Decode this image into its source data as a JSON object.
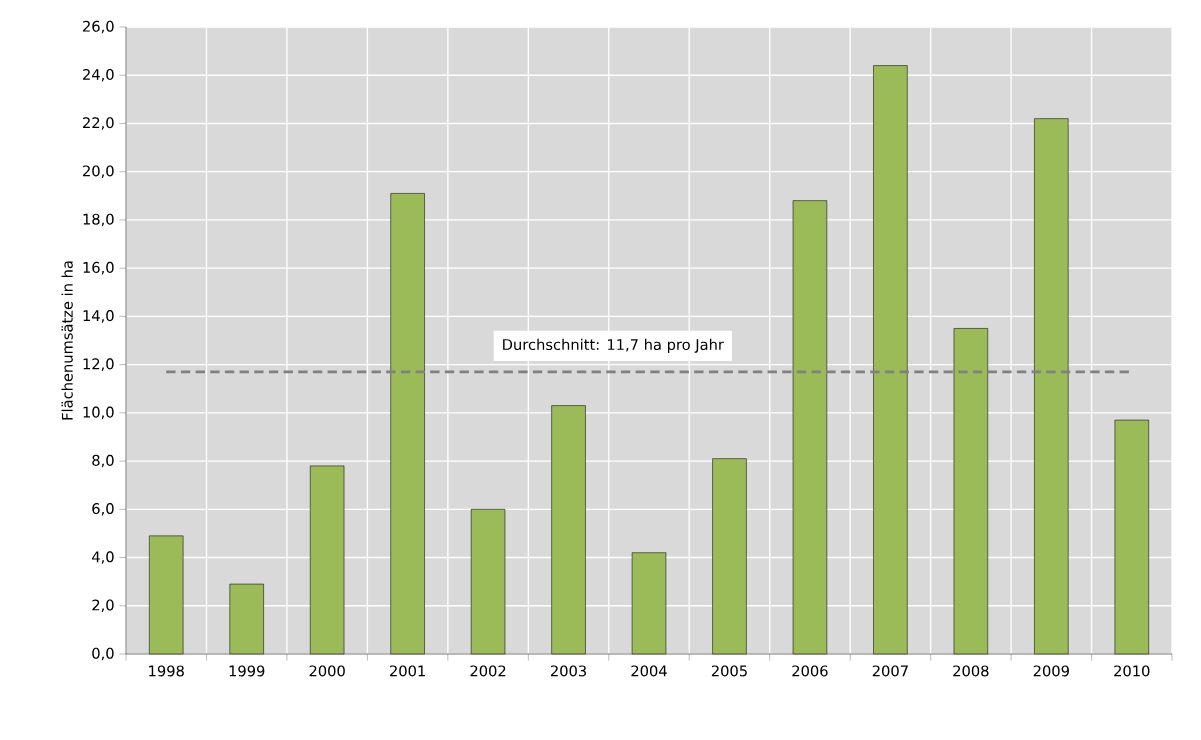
{
  "chart_data": {
    "type": "bar",
    "ylabel": "Flächenumsätze in ha",
    "categories": [
      "1998",
      "1999",
      "2000",
      "2001",
      "2002",
      "2003",
      "2004",
      "2005",
      "2006",
      "2007",
      "2008",
      "2009",
      "2010"
    ],
    "values": [
      4.9,
      2.9,
      7.8,
      19.1,
      6.0,
      10.3,
      4.2,
      8.1,
      18.8,
      24.4,
      13.5,
      22.2,
      9.7
    ],
    "color": "#9bbb59",
    "ylim": [
      0,
      26
    ],
    "yticks": [
      {
        "value": 0,
        "label": "0,0"
      },
      {
        "value": 2,
        "label": "2,0"
      },
      {
        "value": 4,
        "label": "4,0"
      },
      {
        "value": 6,
        "label": "6,0"
      },
      {
        "value": 8,
        "label": "8,0"
      },
      {
        "value": 10,
        "label": "10,0"
      },
      {
        "value": 12,
        "label": "12,0"
      },
      {
        "value": 14,
        "label": "14,0"
      },
      {
        "value": 16,
        "label": "16,0"
      },
      {
        "value": 18,
        "label": "18,0"
      },
      {
        "value": 20,
        "label": "20,0"
      },
      {
        "value": 22,
        "label": "22,0"
      },
      {
        "value": 24,
        "label": "24,0"
      },
      {
        "value": 26,
        "label": "26,0"
      }
    ],
    "ref_lines": [
      {
        "axis": "y",
        "value": 11.7,
        "label": "Durchschnitt: 11,7 ha pro Jahr",
        "color": "#808080",
        "line_style": "dashed"
      }
    ],
    "grid": true
  }
}
